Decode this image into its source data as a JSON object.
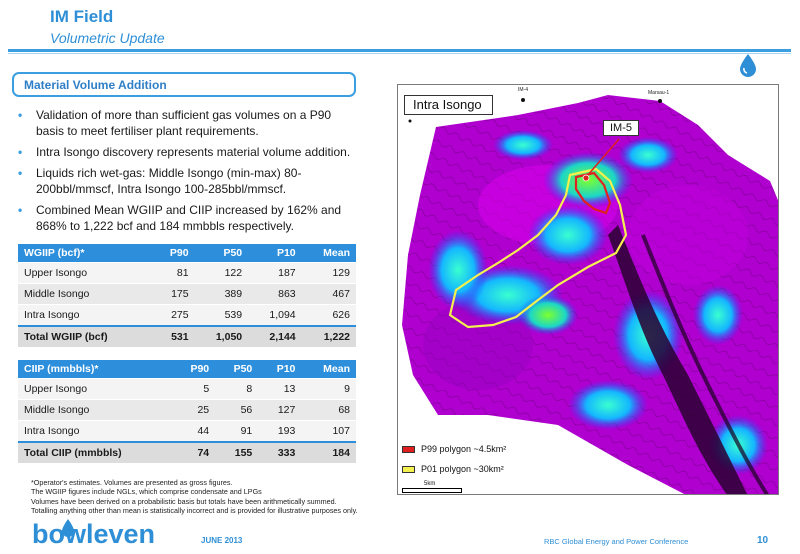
{
  "header": {
    "title": "IM Field",
    "subtitle": "Volumetric Update"
  },
  "section": {
    "title": "Material Volume Addition"
  },
  "bullets": [
    "Validation of more than sufficient gas volumes on a P90 basis to meet fertiliser plant requirements.",
    "Intra Isongo discovery represents material volume addition.",
    "Liquids rich wet-gas: Middle Isongo (min-max) 80-200bbl/mmscf, Intra Isongo 100-285bbl/mmscf.",
    "Combined Mean WGIIP and CIIP increased by 162% and 868% to 1,222 bcf and 184 mmbbls respectively."
  ],
  "wgiip_table": {
    "headers": [
      "WGIIP (bcf)*",
      "P90",
      "P50",
      "P10",
      "Mean"
    ],
    "rows": [
      [
        "Upper Isongo",
        "81",
        "122",
        "187",
        "129"
      ],
      [
        "Middle Isongo",
        "175",
        "389",
        "863",
        "467"
      ],
      [
        "Intra Isongo",
        "275",
        "539",
        "1,094",
        "626"
      ]
    ],
    "total": [
      "Total WGIIP (bcf)",
      "531",
      "1,050",
      "2,144",
      "1,222"
    ]
  },
  "ciip_table": {
    "headers": [
      "CIIP (mmbbls)*",
      "P90",
      "P50",
      "P10",
      "Mean"
    ],
    "rows": [
      [
        "Upper Isongo",
        "5",
        "8",
        "13",
        "9"
      ],
      [
        "Middle Isongo",
        "25",
        "56",
        "127",
        "68"
      ],
      [
        "Intra Isongo",
        "44",
        "91",
        "193",
        "107"
      ]
    ],
    "total": [
      "Total CIIP (mmbbls)",
      "74",
      "155",
      "333",
      "184"
    ]
  },
  "notes": [
    "*Operator's estimates. Volumes are presented as gross figures.",
    "The WGIIP figures include NGLs, which comprise condensate and LPGs",
    "Volumes have been derived on a probabilistic basis but totals have been arithmetically summed.",
    "Totalling anything other than mean is statistically incorrect and is provided for illustrative purposes only."
  ],
  "map": {
    "label_area": "Intra Isongo",
    "label_well": "IM-5",
    "well_tag_1": "IM-4",
    "well_tag_2": "Marsau-1",
    "legend": [
      {
        "label": "P99 polygon ~4.5km²",
        "color": "#e02020"
      },
      {
        "label": "P01 polygon ~30km²",
        "color": "#f3f050"
      }
    ],
    "scale_label": "5km"
  },
  "footer": {
    "logo_text": "bowleven",
    "date": "JUNE 2013",
    "conference": "RBC Global Energy and Power Conference",
    "page": "10"
  },
  "colors": {
    "accent": "#2f8fd6",
    "table_header": "#2d8fdc",
    "map_base": "#b000d0"
  }
}
